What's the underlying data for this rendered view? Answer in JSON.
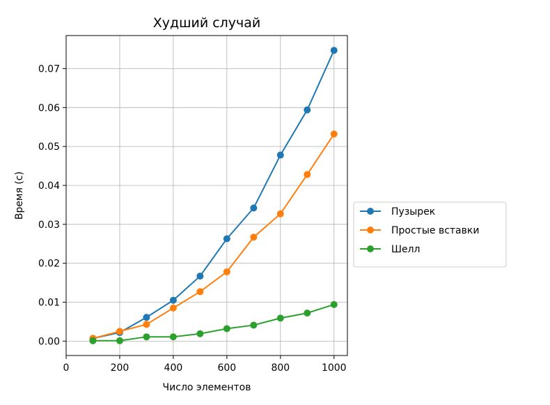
{
  "chart_data": {
    "type": "line",
    "title": "Худший случай",
    "xlabel": "Число элементов",
    "ylabel": "Время (с)",
    "xlim": [
      0,
      1050
    ],
    "ylim": [
      -0.0037,
      0.0785
    ],
    "xticks": [
      0,
      200,
      400,
      600,
      800,
      1000
    ],
    "xtick_labels": [
      "0",
      "200",
      "400",
      "600",
      "800",
      "1000"
    ],
    "yticks": [
      0.0,
      0.01,
      0.02,
      0.03,
      0.04,
      0.05,
      0.06,
      0.07
    ],
    "ytick_labels": [
      "0.00",
      "0.01",
      "0.02",
      "0.03",
      "0.04",
      "0.05",
      "0.06",
      "0.07"
    ],
    "grid": true,
    "legend_position": "right, outside the plot area",
    "x": [
      100,
      200,
      300,
      400,
      500,
      600,
      700,
      800,
      900,
      1000
    ],
    "series": [
      {
        "name": "Пузырек",
        "color": "#1f77b4",
        "values": [
          0.0007,
          0.0022,
          0.0061,
          0.0105,
          0.0167,
          0.0263,
          0.0342,
          0.0478,
          0.0594,
          0.0747
        ]
      },
      {
        "name": "Простые вставки",
        "color": "#ff7f0e",
        "values": [
          0.0007,
          0.0025,
          0.0043,
          0.0085,
          0.0127,
          0.0178,
          0.0267,
          0.0327,
          0.0428,
          0.0532
        ]
      },
      {
        "name": "Шелл",
        "color": "#2ca02c",
        "values": [
          0.0001,
          0.0001,
          0.0011,
          0.0011,
          0.0019,
          0.0032,
          0.0041,
          0.0059,
          0.0072,
          0.0094
        ]
      }
    ]
  }
}
